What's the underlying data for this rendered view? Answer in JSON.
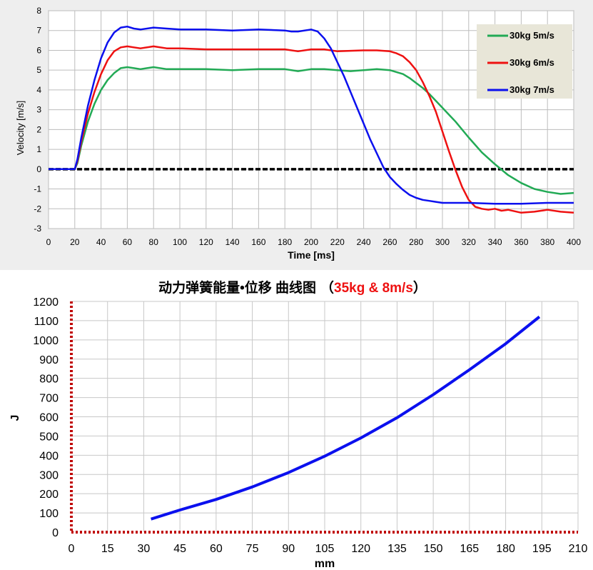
{
  "chart_data": [
    {
      "type": "line",
      "title": "",
      "xlabel": "Time [ms]",
      "ylabel": "Velocity  [m/s]",
      "xlim": [
        0,
        400
      ],
      "ylim": [
        -3,
        8
      ],
      "xticks": [
        0,
        20,
        40,
        60,
        80,
        100,
        120,
        140,
        160,
        180,
        200,
        220,
        240,
        260,
        280,
        300,
        320,
        340,
        360,
        380,
        400
      ],
      "yticks": [
        -3,
        -2,
        -1,
        0,
        1,
        2,
        3,
        4,
        5,
        6,
        7,
        8
      ],
      "grid": true,
      "legend_position": "top-right",
      "background": "#eeeeee",
      "zero_line_color": "#000000",
      "series": [
        {
          "name": "30kg 5m/s",
          "color": "#22aa55",
          "x": [
            0,
            20,
            22,
            25,
            30,
            35,
            40,
            45,
            50,
            55,
            60,
            65,
            70,
            75,
            80,
            90,
            100,
            120,
            140,
            160,
            180,
            190,
            200,
            210,
            220,
            230,
            240,
            250,
            260,
            270,
            275,
            280,
            285,
            290,
            300,
            310,
            320,
            330,
            340,
            350,
            360,
            370,
            380,
            390,
            400
          ],
          "y": [
            0,
            0,
            0.3,
            1.2,
            2.4,
            3.3,
            4.0,
            4.5,
            4.85,
            5.1,
            5.15,
            5.1,
            5.05,
            5.1,
            5.15,
            5.05,
            5.05,
            5.05,
            5.0,
            5.05,
            5.05,
            4.95,
            5.05,
            5.05,
            5.0,
            4.95,
            5.0,
            5.05,
            5.0,
            4.8,
            4.6,
            4.35,
            4.1,
            3.8,
            3.1,
            2.4,
            1.6,
            0.85,
            0.25,
            -0.3,
            -0.7,
            -1.0,
            -1.15,
            -1.25,
            -1.2
          ]
        },
        {
          "name": "30kg 6m/s",
          "color": "#ee1111",
          "x": [
            0,
            20,
            22,
            25,
            30,
            35,
            40,
            45,
            50,
            55,
            60,
            65,
            70,
            80,
            90,
            100,
            120,
            140,
            160,
            180,
            190,
            200,
            210,
            220,
            240,
            250,
            260,
            265,
            270,
            275,
            280,
            285,
            290,
            295,
            300,
            305,
            310,
            315,
            320,
            325,
            330,
            335,
            340,
            345,
            350,
            360,
            370,
            380,
            390,
            400
          ],
          "y": [
            0,
            0,
            0.4,
            1.4,
            2.8,
            3.9,
            4.8,
            5.5,
            5.95,
            6.15,
            6.2,
            6.15,
            6.1,
            6.2,
            6.1,
            6.1,
            6.05,
            6.05,
            6.05,
            6.05,
            5.95,
            6.05,
            6.05,
            5.95,
            6.0,
            6.0,
            5.95,
            5.85,
            5.7,
            5.4,
            5.0,
            4.4,
            3.7,
            2.9,
            1.9,
            0.9,
            -0.05,
            -0.9,
            -1.55,
            -1.9,
            -2.0,
            -2.05,
            -2.0,
            -2.1,
            -2.05,
            -2.2,
            -2.15,
            -2.05,
            -2.15,
            -2.2
          ]
        },
        {
          "name": "30kg 7m/s",
          "color": "#0b10ee",
          "x": [
            0,
            20,
            22,
            25,
            30,
            35,
            40,
            45,
            50,
            55,
            60,
            65,
            70,
            80,
            90,
            100,
            120,
            140,
            160,
            180,
            185,
            190,
            200,
            205,
            210,
            215,
            220,
            225,
            230,
            235,
            240,
            245,
            250,
            255,
            260,
            265,
            270,
            275,
            280,
            285,
            290,
            295,
            300,
            310,
            320,
            340,
            360,
            380,
            400
          ],
          "y": [
            0,
            0,
            0.5,
            1.6,
            3.2,
            4.5,
            5.6,
            6.4,
            6.9,
            7.15,
            7.2,
            7.1,
            7.05,
            7.15,
            7.1,
            7.05,
            7.05,
            7.0,
            7.05,
            7.0,
            6.95,
            6.95,
            7.05,
            6.95,
            6.6,
            6.1,
            5.4,
            4.7,
            3.9,
            3.1,
            2.3,
            1.5,
            0.8,
            0.1,
            -0.4,
            -0.75,
            -1.05,
            -1.3,
            -1.45,
            -1.55,
            -1.6,
            -1.65,
            -1.7,
            -1.7,
            -1.7,
            -1.75,
            -1.75,
            -1.7,
            -1.7
          ]
        }
      ]
    },
    {
      "type": "line",
      "title_main": "动力弹簧能量•位移 曲线图",
      "title_paren_open": "（",
      "title_highlight": "35kg & 8m/s",
      "title_paren_close": "）",
      "title_highlight_color": "#ee1111",
      "xlabel": "mm",
      "ylabel": "J",
      "xlim": [
        0,
        210
      ],
      "ylim": [
        0,
        1200
      ],
      "xticks": [
        0,
        15,
        30,
        45,
        60,
        75,
        90,
        105,
        120,
        135,
        150,
        165,
        180,
        195,
        210
      ],
      "yticks": [
        0,
        100,
        200,
        300,
        400,
        500,
        600,
        700,
        800,
        900,
        1000,
        1100,
        1200
      ],
      "grid": true,
      "axis_color": "#c00000",
      "series": [
        {
          "name": "",
          "color": "#0b10ee",
          "x": [
            33,
            45,
            60,
            75,
            90,
            105,
            120,
            135,
            150,
            165,
            180,
            194
          ],
          "y": [
            68,
            115,
            170,
            235,
            310,
            395,
            490,
            595,
            715,
            845,
            980,
            1120
          ]
        }
      ]
    }
  ]
}
